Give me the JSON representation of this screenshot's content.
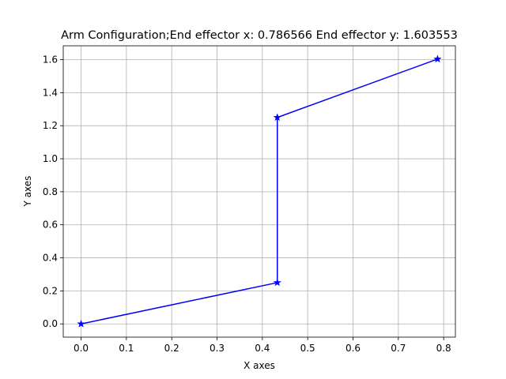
{
  "chart_data": {
    "type": "line",
    "title": "Arm Configuration;End effector x: 0.786566 End effector y: 1.603553",
    "xlabel": "X axes",
    "ylabel": "Y axes",
    "xlim": [
      -0.0393,
      0.8259
    ],
    "ylim": [
      -0.0802,
      1.6838
    ],
    "xticks": [
      0.0,
      0.1,
      0.2,
      0.3,
      0.4,
      0.5,
      0.6,
      0.7,
      0.8
    ],
    "xtick_labels": [
      "0.0",
      "0.1",
      "0.2",
      "0.3",
      "0.4",
      "0.5",
      "0.6",
      "0.7",
      "0.8"
    ],
    "yticks": [
      0.0,
      0.2,
      0.4,
      0.6,
      0.8,
      1.0,
      1.2,
      1.4,
      1.6
    ],
    "ytick_labels": [
      "0.0",
      "0.2",
      "0.4",
      "0.6",
      "0.8",
      "1.0",
      "1.2",
      "1.4",
      "1.6"
    ],
    "grid": true,
    "series": [
      {
        "color": "#0000ff",
        "marker": "star",
        "x": [
          0.0,
          0.433,
          0.433,
          0.786566
        ],
        "y": [
          0.0,
          0.25,
          1.25,
          1.603553
        ]
      }
    ]
  }
}
